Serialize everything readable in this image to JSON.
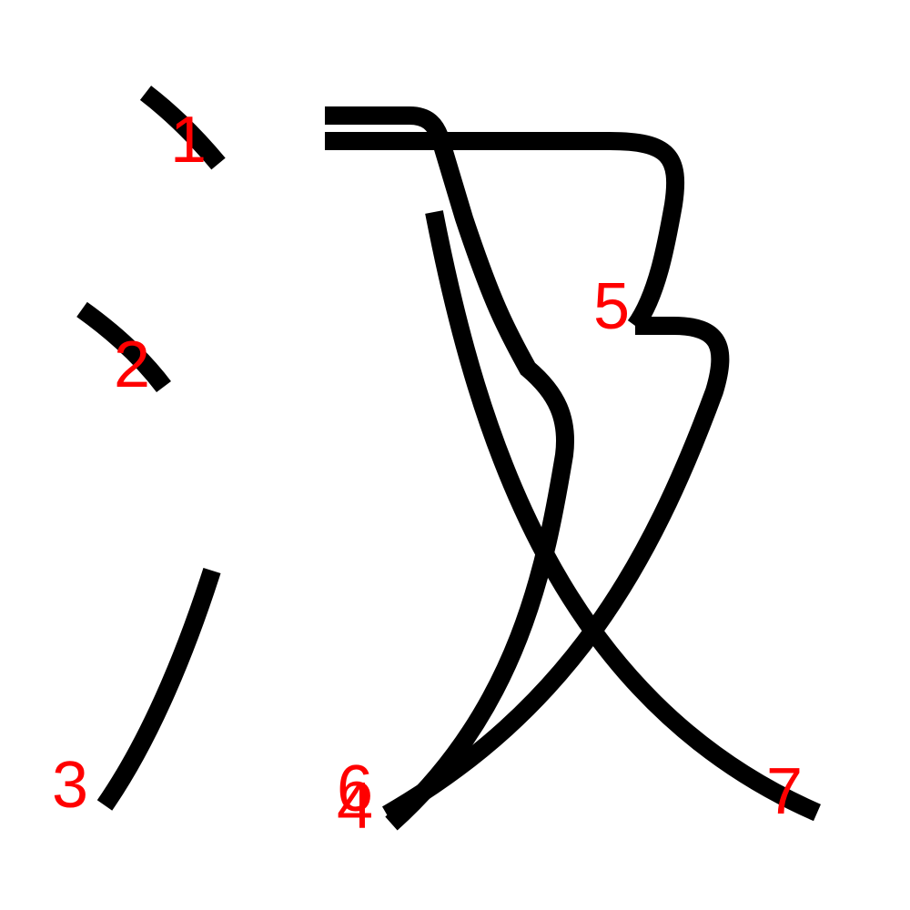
{
  "colors": {
    "stroke": "#000000",
    "label": "#ff0000",
    "background": "#ffffff"
  },
  "strokes": [
    {
      "label": "1"
    },
    {
      "label": "2"
    },
    {
      "label": "3"
    },
    {
      "label": "4"
    },
    {
      "label": "5"
    },
    {
      "label": "6"
    },
    {
      "label": "7"
    }
  ]
}
